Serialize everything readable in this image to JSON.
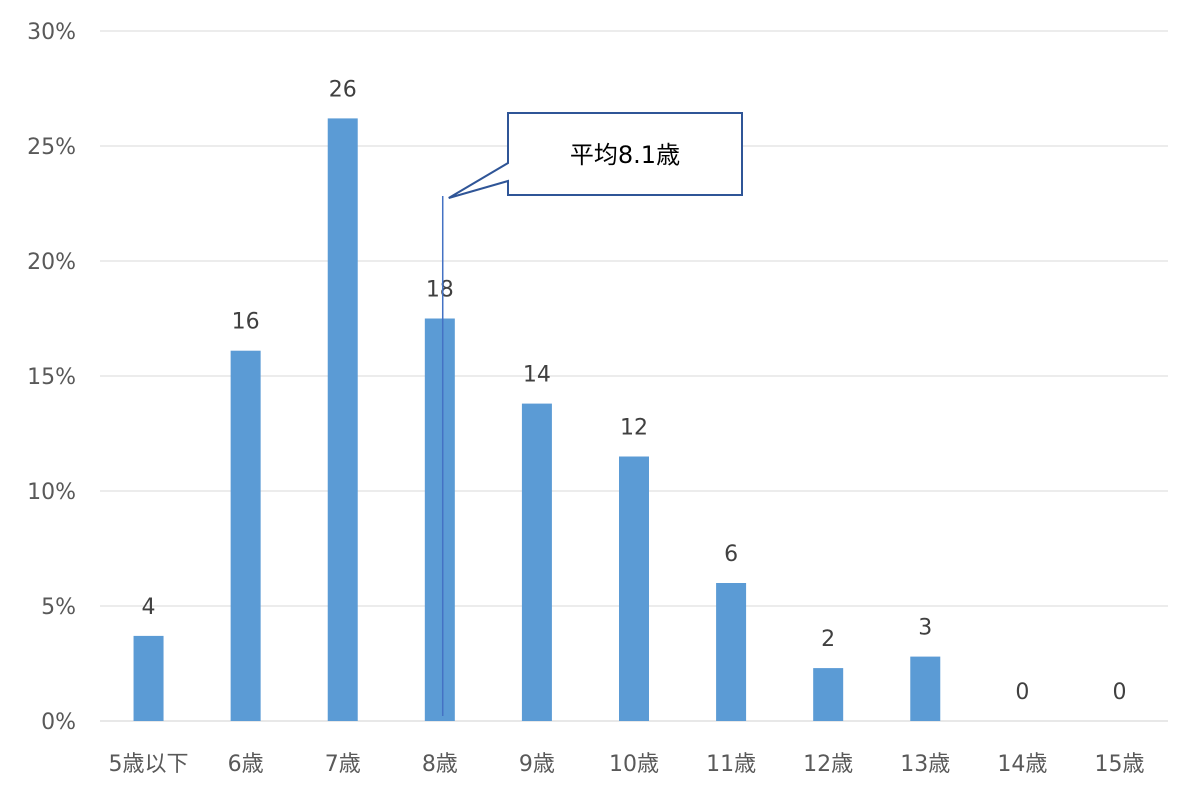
{
  "chart_data": {
    "type": "bar",
    "title": "",
    "xlabel": "",
    "ylabel": "",
    "categories": [
      "5歳以下",
      "6歳",
      "7歳",
      "8歳",
      "9歳",
      "10歳",
      "11歳",
      "12歳",
      "13歳",
      "14歳",
      "15歳"
    ],
    "values": [
      3.7,
      16.1,
      26.2,
      17.5,
      13.8,
      11.5,
      6.0,
      2.3,
      2.8,
      0,
      0
    ],
    "data_labels": [
      "4",
      "16",
      "26",
      "18",
      "14",
      "12",
      "6",
      "2",
      "3",
      "0",
      "0"
    ],
    "value_unit": "%",
    "ylim": [
      0,
      30
    ],
    "yticks": [
      0,
      5,
      10,
      15,
      20,
      25,
      30
    ],
    "ytick_labels": [
      "0%",
      "5%",
      "10%",
      "15%",
      "20%",
      "25%",
      "30%"
    ],
    "grid": true,
    "legend": "none",
    "bar_color": "#5b9bd5",
    "mean_marker": {
      "value": 8.1,
      "label": "平均8.1歳",
      "line_color": "#4472c4",
      "callout_border_color": "#2f5597"
    }
  }
}
